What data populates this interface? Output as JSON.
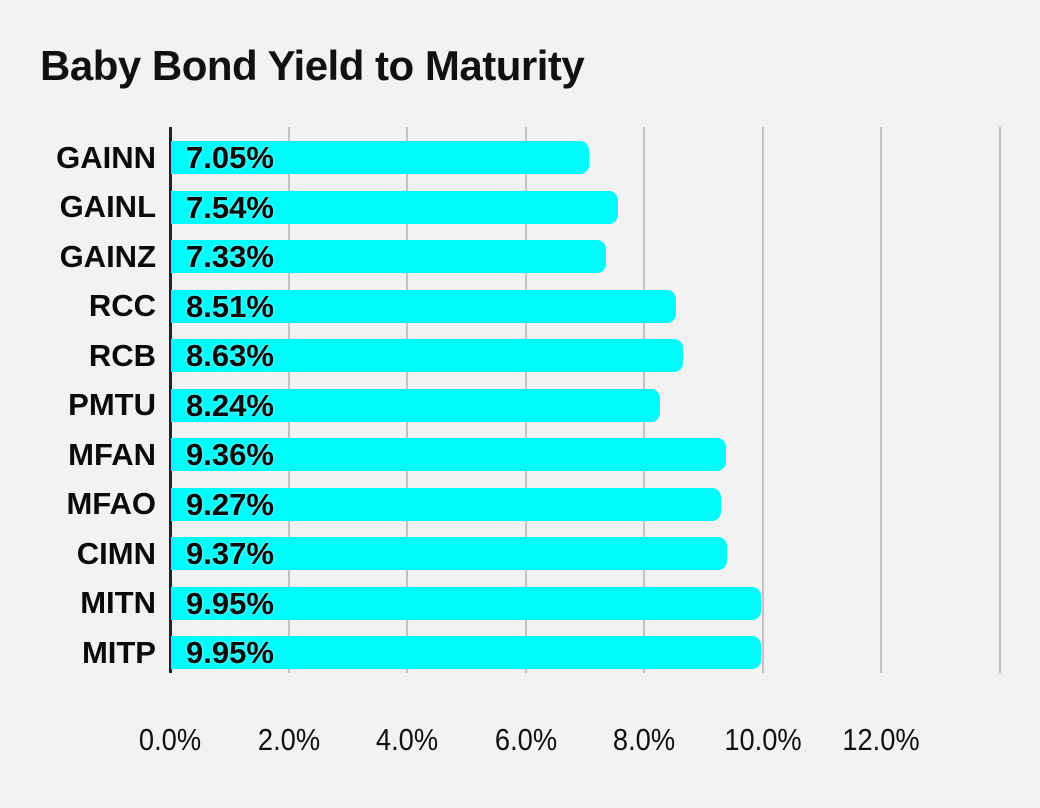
{
  "chart_data": {
    "type": "bar",
    "orientation": "horizontal",
    "title": "Baby Bond Yield to Maturity",
    "categories": [
      "GAINN",
      "GAINL",
      "GAINZ",
      "RCC",
      "RCB",
      "PMTU",
      "MFAN",
      "MFAO",
      "CIMN",
      "MITN",
      "MITP"
    ],
    "values": [
      7.05,
      7.54,
      7.33,
      8.51,
      8.63,
      8.24,
      9.36,
      9.27,
      9.37,
      9.95,
      9.95
    ],
    "value_labels": [
      "7.05%",
      "7.54%",
      "7.33%",
      "8.51%",
      "8.63%",
      "8.24%",
      "9.36%",
      "9.27%",
      "9.37%",
      "9.95%",
      "9.95%"
    ],
    "xlabel": "",
    "ylabel": "",
    "xlim": [
      0,
      14
    ],
    "x_tick_values": [
      0,
      2,
      4,
      6,
      8,
      10,
      12
    ],
    "x_tick_labels": [
      "0.0%",
      "2.0%",
      "4.0%",
      "6.0%",
      "8.0%",
      "10.0%",
      "12.0%"
    ],
    "gridline_values": [
      2,
      4,
      6,
      8,
      10,
      12,
      14
    ],
    "grid": "vertical",
    "legend_position": "none",
    "colors": {
      "bar": "#00fbfb",
      "background": "#f2f2f2",
      "gridline": "#c2c2c2",
      "axis": "#222222",
      "text": "#111111"
    }
  }
}
